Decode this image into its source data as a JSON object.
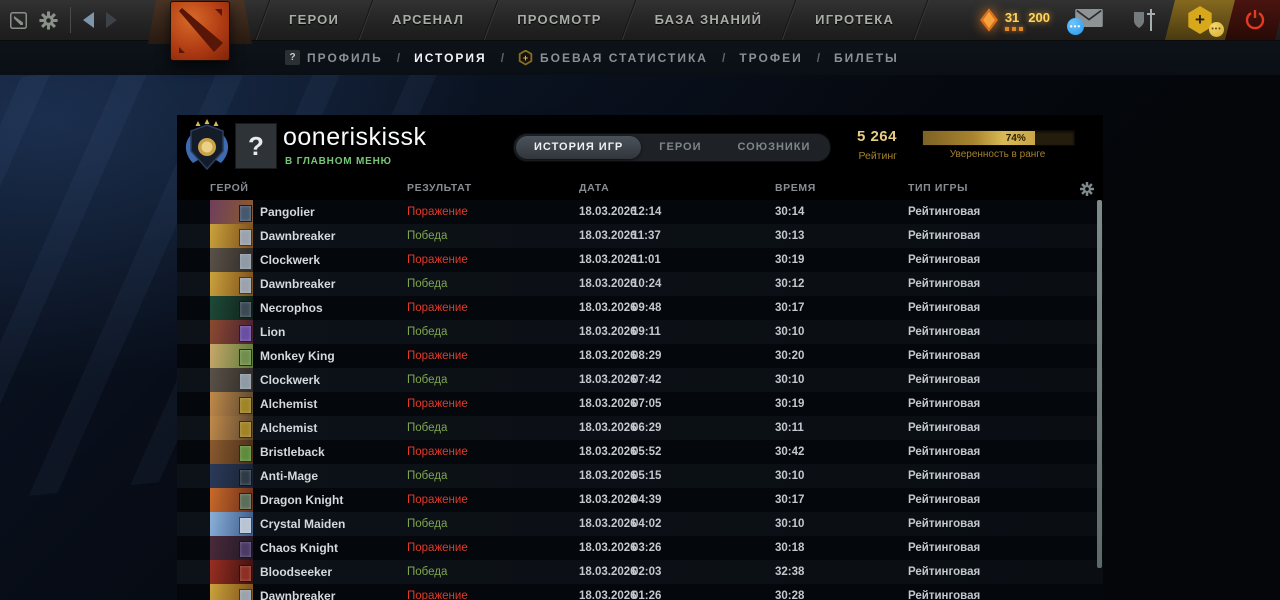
{
  "topbar": {
    "nav": [
      "ГЕРОИ",
      "АРСЕНАЛ",
      "ПРОСМОТР",
      "БАЗА ЗНАНИЙ",
      "ИГРОТЕКА"
    ],
    "event_level": "31",
    "event_points": "200"
  },
  "subnav": {
    "separator": "/",
    "items": [
      {
        "label": "ПРОФИЛЬ",
        "icon": "question-badge",
        "active": false
      },
      {
        "label": "ИСТОРИЯ",
        "active": true
      },
      {
        "label": "БОЕВАЯ СТАТИСТИКА",
        "icon": "hex-plus",
        "active": false
      },
      {
        "label": "ТРОФЕИ",
        "active": false
      },
      {
        "label": "БИЛЕТЫ",
        "active": false
      }
    ]
  },
  "profile": {
    "name": "ooneriskissk",
    "status": "В ГЛАВНОМ МЕНЮ",
    "avatar": "?",
    "tabs": [
      {
        "label": "ИСТОРИЯ ИГР",
        "active": true
      },
      {
        "label": "ГЕРОИ",
        "active": false
      },
      {
        "label": "СОЮЗНИКИ",
        "active": false
      }
    ],
    "rating_value": "5 264",
    "rating_label": "Рейтинг",
    "confidence_percent": 74,
    "confidence_display": "74%",
    "confidence_label": "Уверенность в ранге"
  },
  "table": {
    "headers": [
      "ГЕРОЙ",
      "РЕЗУЛЬТАТ",
      "ДАТА",
      "ВРЕМЯ",
      "ТИП ИГРЫ"
    ],
    "rows": [
      {
        "hero": "Pangolier",
        "result": "Поражение",
        "win": false,
        "date": "18.03.2026",
        "clock": "12:14",
        "duration": "30:14",
        "type": "Рейтинговая",
        "c1": "#6e3f5c",
        "c2": "#8a5a2e",
        "badge": "#46586e"
      },
      {
        "hero": "Dawnbreaker",
        "result": "Победа",
        "win": true,
        "date": "18.03.2026",
        "clock": "11:37",
        "duration": "30:13",
        "type": "Рейтинговая",
        "c1": "#caa23c",
        "c2": "#7a4e1a",
        "badge": "#9aa3ad"
      },
      {
        "hero": "Clockwerk",
        "result": "Поражение",
        "win": false,
        "date": "18.03.2026",
        "clock": "11:01",
        "duration": "30:19",
        "type": "Рейтинговая",
        "c1": "#5a5248",
        "c2": "#2e2a26",
        "badge": "#8f9aa5"
      },
      {
        "hero": "Dawnbreaker",
        "result": "Победа",
        "win": true,
        "date": "18.03.2026",
        "clock": "10:24",
        "duration": "30:12",
        "type": "Рейтинговая",
        "c1": "#caa23c",
        "c2": "#7a4e1a",
        "badge": "#9aa3ad"
      },
      {
        "hero": "Necrophos",
        "result": "Поражение",
        "win": false,
        "date": "18.03.2026",
        "clock": "09:48",
        "duration": "30:17",
        "type": "Рейтинговая",
        "c1": "#1e4a38",
        "c2": "#0e2018",
        "badge": "#3c4854"
      },
      {
        "hero": "Lion",
        "result": "Победа",
        "win": true,
        "date": "18.03.2026",
        "clock": "09:11",
        "duration": "30:10",
        "type": "Рейтинговая",
        "c1": "#8a4a30",
        "c2": "#4a2030",
        "badge": "#6a4fa0"
      },
      {
        "hero": "Monkey King",
        "result": "Поражение",
        "win": false,
        "date": "18.03.2026",
        "clock": "08:29",
        "duration": "30:20",
        "type": "Рейтинговая",
        "c1": "#c8a86a",
        "c2": "#5a7a3a",
        "badge": "#6f8f4a"
      },
      {
        "hero": "Clockwerk",
        "result": "Победа",
        "win": true,
        "date": "18.03.2026",
        "clock": "07:42",
        "duration": "30:10",
        "type": "Рейтинговая",
        "c1": "#5a5248",
        "c2": "#2e2a26",
        "badge": "#8f9aa5"
      },
      {
        "hero": "Alchemist",
        "result": "Поражение",
        "win": false,
        "date": "18.03.2026",
        "clock": "07:05",
        "duration": "30:19",
        "type": "Рейтинговая",
        "c1": "#c08a4a",
        "c2": "#5a4630",
        "badge": "#a08428"
      },
      {
        "hero": "Alchemist",
        "result": "Победа",
        "win": true,
        "date": "18.03.2026",
        "clock": "06:29",
        "duration": "30:11",
        "type": "Рейтинговая",
        "c1": "#c08a4a",
        "c2": "#5a4630",
        "badge": "#a08428"
      },
      {
        "hero": "Bristleback",
        "result": "Поражение",
        "win": false,
        "date": "18.03.2026",
        "clock": "05:52",
        "duration": "30:42",
        "type": "Рейтинговая",
        "c1": "#8a5a2e",
        "c2": "#4a2e1a",
        "badge": "#5f8c3c"
      },
      {
        "hero": "Anti-Mage",
        "result": "Победа",
        "win": true,
        "date": "18.03.2026",
        "clock": "05:15",
        "duration": "30:10",
        "type": "Рейтинговая",
        "c1": "#2a3a5a",
        "c2": "#1a2232",
        "badge": "#2e3a46"
      },
      {
        "hero": "Dragon Knight",
        "result": "Поражение",
        "win": false,
        "date": "18.03.2026",
        "clock": "04:39",
        "duration": "30:17",
        "type": "Рейтинговая",
        "c1": "#c86a2a",
        "c2": "#6a2e1a",
        "badge": "#5c6e5a"
      },
      {
        "hero": "Crystal Maiden",
        "result": "Победа",
        "win": true,
        "date": "18.03.2026",
        "clock": "04:02",
        "duration": "30:10",
        "type": "Рейтинговая",
        "c1": "#8ab0d8",
        "c2": "#3a5a8a",
        "badge": "#b8c4d4"
      },
      {
        "hero": "Chaos Knight",
        "result": "Поражение",
        "win": false,
        "date": "18.03.2026",
        "clock": "03:26",
        "duration": "30:18",
        "type": "Рейтинговая",
        "c1": "#4a2a3a",
        "c2": "#201826",
        "badge": "#4a3a66"
      },
      {
        "hero": "Bloodseeker",
        "result": "Победа",
        "win": true,
        "date": "18.03.2026",
        "clock": "02:03",
        "duration": "32:38",
        "type": "Рейтинговая",
        "c1": "#9a2e22",
        "c2": "#3a1210",
        "badge": "#8c2f24"
      },
      {
        "hero": "Dawnbreaker",
        "result": "Поражение",
        "win": false,
        "date": "18.03.2026",
        "clock": "01:26",
        "duration": "30:28",
        "type": "Рейтинговая",
        "c1": "#caa23c",
        "c2": "#7a4e1a",
        "badge": "#9aa3ad"
      }
    ]
  },
  "colors": {
    "win": "#7fa64f",
    "loss": "#e23a27",
    "accent_gold": "#c9a958"
  },
  "icons": [
    "dota-window-icon",
    "settings-gear-icon",
    "back-arrow-icon",
    "forward-arrow-icon",
    "dota-logo",
    "event-shard-icon",
    "chat-envelope-icon",
    "chat-badge-icon",
    "armory-shield-sword-icon",
    "dota-plus-hex-icon",
    "power-icon",
    "question-badge-icon",
    "battle-stats-hex-icon",
    "rank-medal-icon",
    "table-settings-gear-icon",
    "facet-badge-icon",
    "scrollbar"
  ]
}
